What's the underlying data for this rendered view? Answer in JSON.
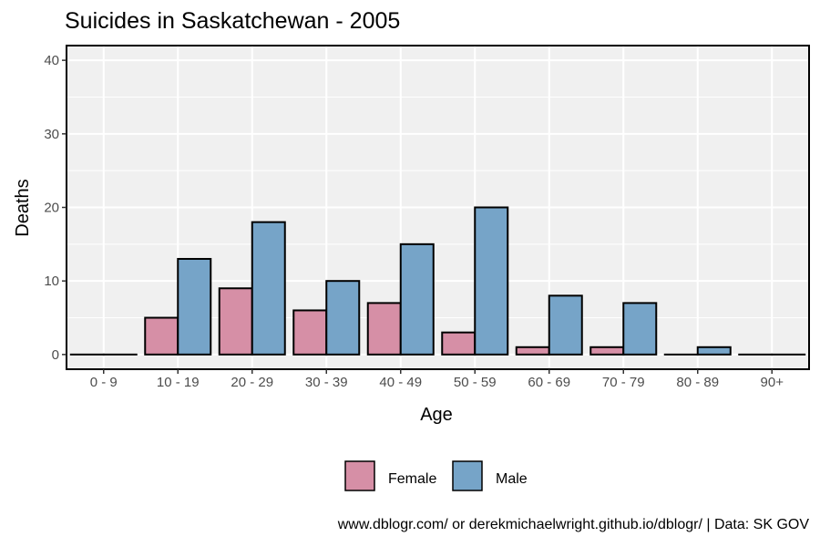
{
  "chart_data": {
    "type": "bar",
    "title": "Suicides in Saskatchewan - 2005",
    "xlabel": "Age",
    "ylabel": "Deaths",
    "categories": [
      "0 - 9",
      "10 - 19",
      "20 - 29",
      "30 - 39",
      "40 - 49",
      "50 - 59",
      "60 - 69",
      "70 - 79",
      "80 - 89",
      "90+"
    ],
    "series": [
      {
        "name": "Female",
        "color": "#d68fa6",
        "values": [
          0,
          5,
          9,
          6,
          7,
          3,
          1,
          1,
          0,
          0
        ]
      },
      {
        "name": "Male",
        "color": "#76a4c8",
        "values": [
          0,
          13,
          18,
          10,
          15,
          20,
          8,
          7,
          1,
          0
        ]
      }
    ],
    "ylim": [
      -2,
      42
    ],
    "yticks": [
      0,
      10,
      20,
      30,
      40
    ],
    "grid": true,
    "legend_position": "bottom",
    "caption": "www.dblogr.com/ or derekmichaelwright.github.io/dblogr/ | Data: SK GOV"
  }
}
